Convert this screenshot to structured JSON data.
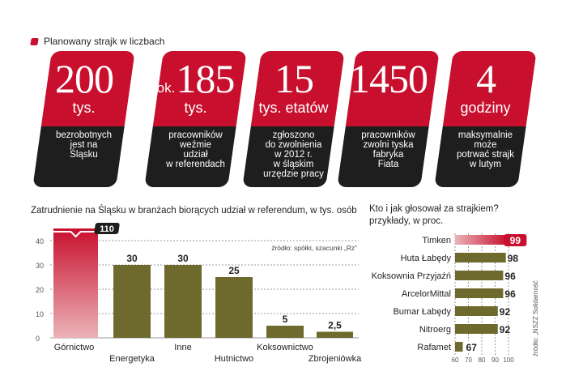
{
  "header": {
    "label": "Planowany strajk w liczbach"
  },
  "cards": [
    {
      "prefix": "",
      "number": "200",
      "unit": "tys.",
      "desc": "bezrobotnych\njest na\nŚląsku"
    },
    {
      "prefix": "ok.",
      "number": "185",
      "unit": "tys.",
      "desc": "pracowników\nweźmie\nudział\nw referendach"
    },
    {
      "prefix": "",
      "number": "15",
      "unit": "tys. etatów",
      "desc": "zgłoszono\ndo zwolnienia\nw 2012 r.\nw śląskim\nurzędzie pracy"
    },
    {
      "prefix": "",
      "number": "1450",
      "unit": "",
      "desc": "pracowników\nzwolni tyska\nfabryka\nFiata"
    },
    {
      "prefix": "",
      "number": "4",
      "unit": "godziny",
      "desc": "maksymalnie\nmoże\npotrwać strajk\nw lutym"
    }
  ],
  "colors": {
    "accent": "#c8102e",
    "dark": "#1e1e1e",
    "olive": "#6e6a2e",
    "grid": "#9a9a9a"
  },
  "chart_data": [
    {
      "type": "bar",
      "title": "Zatrudnienie na Śląsku w branżach biorących udział w referendum, w tys. osób",
      "source": "źródło: spółki, szacunki „Rz”",
      "categories": [
        "Górnictwo",
        "Energetyka",
        "Inne",
        "Hutnictwo",
        "Koksownictwo",
        "Zbrojeniówka"
      ],
      "values": [
        110,
        30,
        30,
        25,
        5,
        2.5
      ],
      "value_labels": [
        "110",
        "30",
        "30",
        "25",
        "5",
        "2,5"
      ],
      "yticks": [
        "0",
        "10",
        "20",
        "30",
        "40"
      ],
      "ylim": [
        0,
        45
      ],
      "axis_break": true,
      "grid": true
    },
    {
      "type": "bar",
      "orientation": "horizontal",
      "title": "Kto i jak głosował za strajkiem?",
      "subtitle": "przykłady, w proc.",
      "source": "źródło: „NSZZ Solidarność",
      "categories": [
        "Timken",
        "Huta Łabędy",
        "Koksownia Przyjaźń",
        "ArcelorMittal",
        "Bumar Łabędy",
        "Nitroerg",
        "Rafamet"
      ],
      "values": [
        99,
        98,
        96,
        96,
        92,
        92,
        67
      ],
      "xticks": [
        "60",
        "70",
        "80",
        "90",
        "100"
      ],
      "xlim": [
        60,
        100
      ],
      "grid": true
    }
  ]
}
